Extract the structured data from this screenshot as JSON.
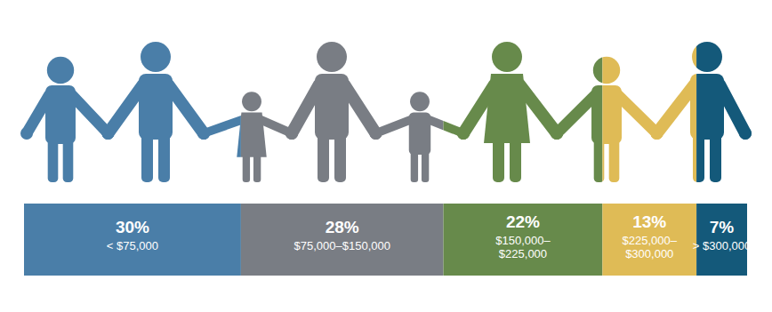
{
  "chart_data": {
    "type": "bar",
    "orientation": "horizontal",
    "stacked": true,
    "data_labels": true,
    "tick_labels": false,
    "categories": [
      null
    ],
    "xlim": [
      0,
      100
    ],
    "series": [
      {
        "name": "< $75,000",
        "color": "#4a7ea8",
        "values": [
          30
        ],
        "value_labels": [
          "30%"
        ]
      },
      {
        "name": "$75,000–$150,000",
        "color": "#797d84",
        "values": [
          28
        ],
        "value_labels": [
          "28%"
        ]
      },
      {
        "name": "$150,000–$225,000",
        "color": "#678a4b",
        "values": [
          22
        ],
        "value_labels": [
          "22%"
        ]
      },
      {
        "name": "$225,000–$300,000",
        "color": "#dfbb56",
        "values": [
          13
        ],
        "value_labels": [
          "13%"
        ]
      },
      {
        "name": "> $300,000",
        "color": "#14597a",
        "values": [
          7
        ],
        "value_labels": [
          "7%"
        ]
      }
    ]
  }
}
